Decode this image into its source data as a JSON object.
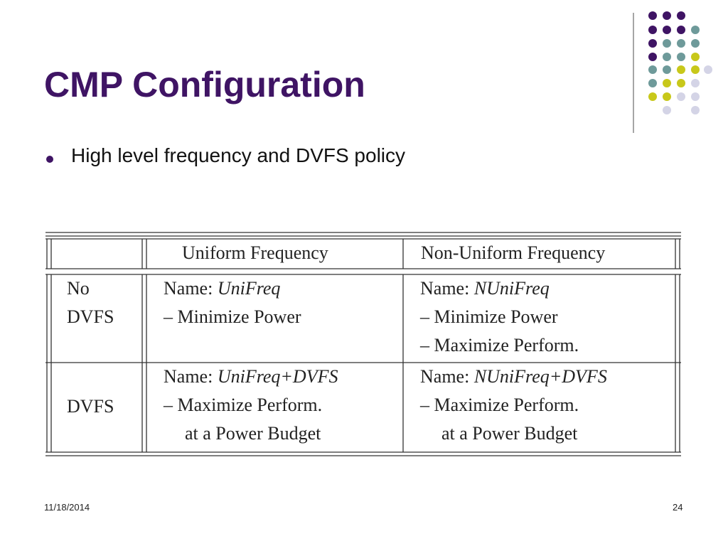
{
  "title": "CMP Configuration",
  "bullets": [
    "High level frequency and DVFS policy"
  ],
  "table": {
    "columns": [
      "Uniform Frequency",
      "Non-Uniform Frequency"
    ],
    "rows": [
      {
        "label": [
          "No",
          "DVFS"
        ],
        "cells": [
          {
            "prefix": "Name:",
            "name": "UniFreq",
            "lines": [
              "– Minimize Power"
            ]
          },
          {
            "prefix": "Name:",
            "name": "NUniFreq",
            "lines": [
              "– Minimize Power",
              "– Maximize Perform."
            ]
          }
        ]
      },
      {
        "label": [
          "DVFS"
        ],
        "cells": [
          {
            "prefix": "Name:",
            "name": "UniFreq+DVFS",
            "lines": [
              "– Maximize Perform.",
              "at a Power Budget"
            ]
          },
          {
            "prefix": "Name:",
            "name": "NUniFreq+DVFS",
            "lines": [
              "– Maximize Perform.",
              "at a Power Budget"
            ]
          }
        ]
      }
    ]
  },
  "footer": {
    "date": "11/18/2014",
    "page": "24"
  }
}
